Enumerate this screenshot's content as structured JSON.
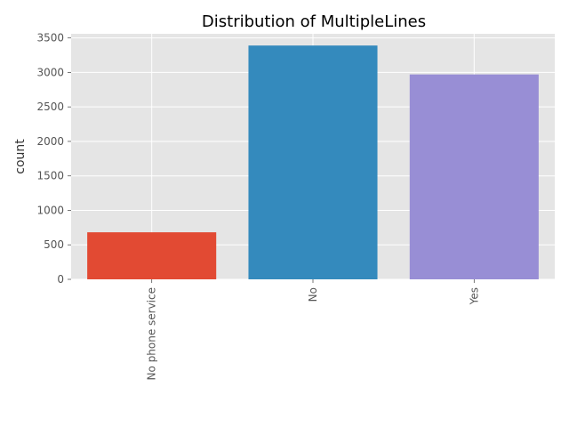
{
  "chart_data": {
    "type": "bar",
    "title": "Distribution of MultipleLines",
    "xlabel": "",
    "ylabel": "count",
    "categories": [
      "No phone service",
      "No",
      "Yes"
    ],
    "values": [
      682,
      3390,
      2971
    ],
    "colors": [
      "#E24A33",
      "#348ABD",
      "#988ED5"
    ],
    "ylim": [
      0,
      3560
    ],
    "yticks": [
      0,
      500,
      1000,
      1500,
      2000,
      2500,
      3000,
      3500
    ],
    "ytick_labels": [
      "0",
      "500",
      "1000",
      "1500",
      "2000",
      "2500",
      "3000",
      "3500"
    ],
    "xtick_rotation": 90,
    "grid": true,
    "grid_color": "#FFFFFF",
    "background_color": "#E5E5E5",
    "legend": false
  }
}
